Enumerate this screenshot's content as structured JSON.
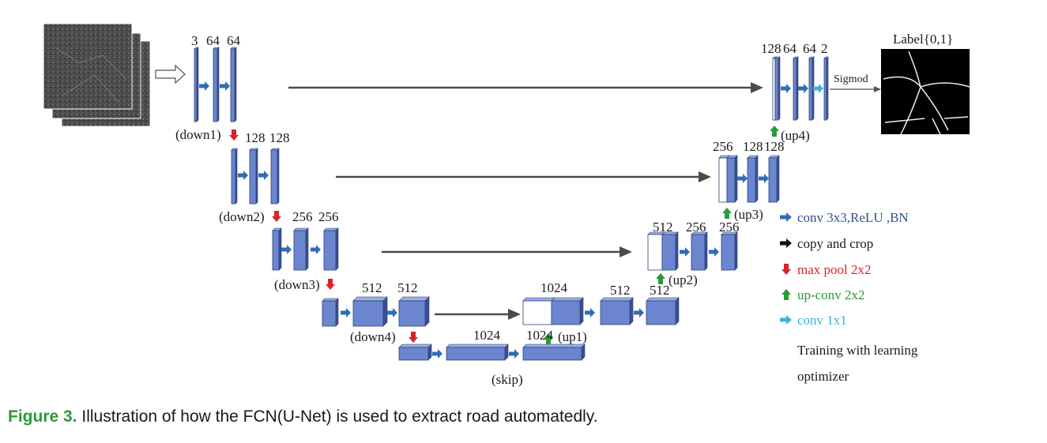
{
  "diagram": {
    "colors": {
      "block_front": "#6b86cf",
      "block_top": "#97aee3",
      "block_side": "#3b4f8f",
      "block_outline": "#2d3f78",
      "copy_arrow": "#4a4a4a",
      "conv_arrow": "#2f6db5",
      "maxpool_arrow": "#d8232a",
      "upconv_arrow": "#2a9a3a",
      "conv1x1_arrow": "#3fb0d8"
    },
    "channels": {
      "enc1": [
        "3",
        "64",
        "64"
      ],
      "enc2": [
        "128",
        "128"
      ],
      "enc3": [
        "256",
        "256"
      ],
      "enc4": [
        "512",
        "512"
      ],
      "bottom_a": "1024",
      "bottom_b": "1024",
      "up1_concat": "1024",
      "up1": [
        "512",
        "512"
      ],
      "up2": [
        "512",
        "256",
        "256"
      ],
      "up3": [
        "256",
        "128",
        "128"
      ],
      "up4": [
        "128",
        "64",
        "64",
        "2"
      ]
    },
    "stage_labels": {
      "down1": "(down1)",
      "down2": "(down2)",
      "down3": "(down3)",
      "down4": "(down4)",
      "skip": "(skip)",
      "up1": "(up1)",
      "up2": "(up2)",
      "up3": "(up3)",
      "up4": "(up4)"
    },
    "output_label": "Label{0,1}",
    "sigmoid_label": "Sigmod",
    "legend": [
      {
        "icon": "conv-arrow-icon",
        "text": "conv 3x3,ReLU ,BN",
        "color": "#2f4f8f"
      },
      {
        "icon": "copy-arrow-icon",
        "text": "copy and crop",
        "color": "#1a1a1a"
      },
      {
        "icon": "maxpool-arrow-icon",
        "text": "max pool 2x2",
        "color": "#d8232a"
      },
      {
        "icon": "upconv-arrow-icon",
        "text": "up-conv 2x2",
        "color": "#2a9a3a"
      },
      {
        "icon": "conv1x1-arrow-icon",
        "text": "conv 1x1",
        "color": "#3fb0d8"
      }
    ],
    "note_lines": [
      "Training with learning",
      "optimizer"
    ]
  },
  "caption": {
    "label": "Figure 3.",
    "text": " Illustration of how the FCN(U-Net) is used to extract road automatedly."
  }
}
